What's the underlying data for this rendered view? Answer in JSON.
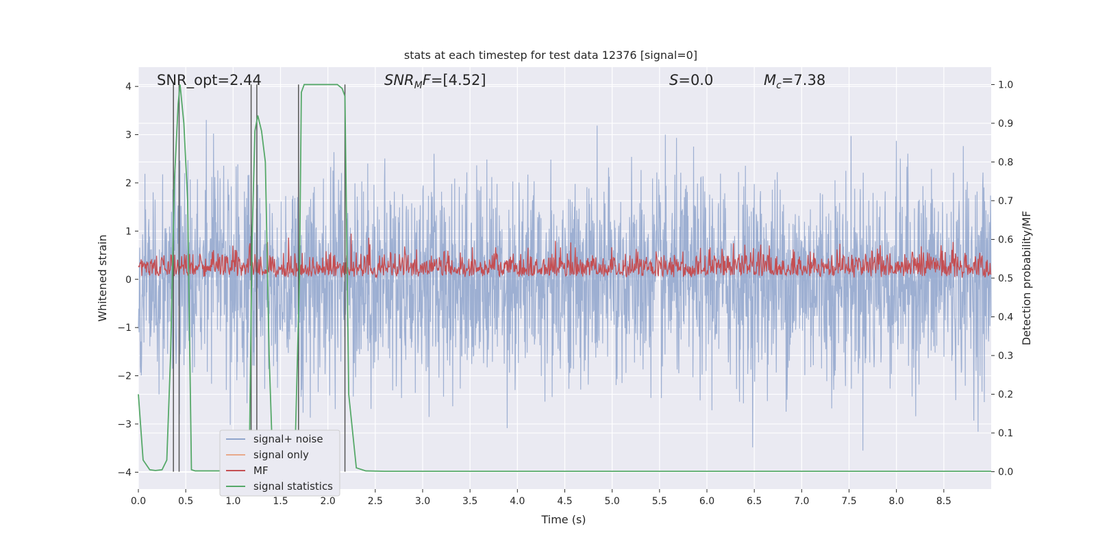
{
  "chart_data": {
    "type": "line",
    "title": "stats at each timestep for test data 12376 [signal=0]",
    "xlabel": "Time (s)",
    "ylabel_left": "Whitened strain",
    "ylabel_right": "Detection probability/MF",
    "xlim": [
      0,
      9.0
    ],
    "ylim_left": [
      -4.35,
      4.4
    ],
    "ylim_right": [
      -0.045,
      1.045
    ],
    "x_ticks": [
      "0.0",
      "0.5",
      "1.0",
      "1.5",
      "2.0",
      "2.5",
      "3.0",
      "3.5",
      "4.0",
      "4.5",
      "5.0",
      "5.5",
      "6.0",
      "6.5",
      "7.0",
      "7.5",
      "8.0",
      "8.5"
    ],
    "x_tick_values": [
      0,
      0.5,
      1,
      1.5,
      2,
      2.5,
      3,
      3.5,
      4,
      4.5,
      5,
      5.5,
      6,
      6.5,
      7,
      7.5,
      8,
      8.5
    ],
    "y_left_ticks": [
      "−4",
      "−3",
      "−2",
      "−1",
      "0",
      "1",
      "2",
      "3",
      "4"
    ],
    "y_left_tick_values": [
      -4,
      -3,
      -2,
      -1,
      0,
      1,
      2,
      3,
      4
    ],
    "y_right_ticks": [
      "0.0",
      "0.1",
      "0.2",
      "0.3",
      "0.4",
      "0.5",
      "0.6",
      "0.7",
      "0.8",
      "0.9",
      "1.0"
    ],
    "y_right_tick_values": [
      0,
      0.1,
      0.2,
      0.3,
      0.4,
      0.5,
      0.6,
      0.7,
      0.8,
      0.9,
      1.0
    ],
    "grid": true,
    "legend_position": "bottom-left",
    "annotations": {
      "snr_opt": "SNR_opt=2.44",
      "snr_mf_label": "SNR",
      "snr_mf_sub": "M",
      "snr_mf_after": "F",
      "snr_mf_value": "=[4.52]",
      "s_label": "S",
      "s_value": "=0.0",
      "mc_label": "M",
      "mc_sub": "c",
      "mc_value": "=7.38"
    },
    "series": [
      {
        "name": "signal+ noise",
        "color": "#8fa4cc",
        "axis": "left",
        "summary": "dense noise between about -3.7 and 4.0"
      },
      {
        "name": "signal only",
        "color": "#e8a98a",
        "axis": "left",
        "values": []
      },
      {
        "name": "MF",
        "color": "#c44e52",
        "axis": "right",
        "range": [
          0.5,
          0.62
        ]
      },
      {
        "name": "signal statistics",
        "color": "#55a868",
        "axis": "right",
        "x": [
          0.0,
          0.05,
          0.12,
          0.18,
          0.25,
          0.3,
          0.34,
          0.38,
          0.42,
          0.44,
          0.48,
          0.52,
          0.56,
          0.6,
          0.7,
          0.8,
          0.9,
          1.0,
          1.1,
          1.17,
          1.2,
          1.23,
          1.26,
          1.3,
          1.34,
          1.38,
          1.42,
          1.5,
          1.6,
          1.65,
          1.7,
          1.72,
          1.75,
          1.8,
          2.0,
          2.1,
          2.15,
          2.18,
          2.22,
          2.3,
          2.4,
          2.6,
          3.0,
          9.0
        ],
        "y": [
          0.2,
          0.03,
          0.005,
          0.003,
          0.005,
          0.03,
          0.3,
          0.75,
          0.95,
          1.0,
          0.9,
          0.7,
          0.005,
          0.002,
          0.002,
          0.002,
          0.002,
          0.002,
          0.002,
          0.02,
          0.6,
          0.88,
          0.92,
          0.88,
          0.8,
          0.3,
          0.005,
          0.002,
          0.002,
          0.02,
          0.5,
          0.98,
          1.0,
          1.0,
          1.0,
          1.0,
          0.99,
          0.97,
          0.2,
          0.01,
          0.002,
          0.001,
          0.001,
          0.001
        ]
      }
    ],
    "vlines_x": [
      0.37,
      0.43,
      1.19,
      1.25,
      1.69,
      2.18
    ]
  }
}
